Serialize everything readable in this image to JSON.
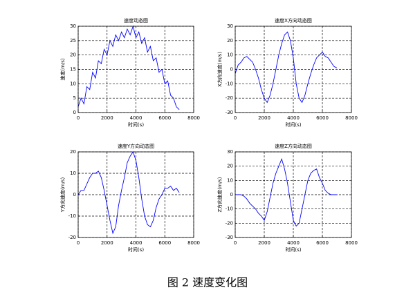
{
  "chart_data": [
    {
      "type": "line",
      "title": "速度动态图",
      "x_label": "时间(s)",
      "y_label": "速度(m/s)",
      "color": "#0000ff",
      "x": [
        0,
        200,
        400,
        600,
        800,
        1000,
        1200,
        1400,
        1600,
        1800,
        2000,
        2200,
        2400,
        2600,
        2800,
        3000,
        3200,
        3400,
        3600,
        3800,
        4000,
        4200,
        4400,
        4600,
        4800,
        5000,
        5200,
        5400,
        5600,
        5800,
        6000,
        6200,
        6400,
        6600,
        6800,
        7000
      ],
      "values": [
        2,
        5,
        3,
        9,
        8,
        14,
        12,
        18,
        17,
        22,
        20,
        25,
        23,
        27,
        25,
        28,
        26,
        29,
        27,
        30,
        26,
        28,
        24,
        26,
        21,
        23,
        18,
        19,
        14,
        15,
        10,
        11,
        6,
        5,
        2,
        1
      ],
      "xlim": [
        0,
        8000
      ],
      "ylim": [
        0,
        30
      ],
      "xticks": [
        0,
        2000,
        4000,
        6000,
        8000
      ],
      "yticks": [
        0,
        5,
        10,
        15,
        20,
        25,
        30
      ],
      "grid": true
    },
    {
      "type": "line",
      "title": "速度X方向动态图",
      "x_label": "时间(s)",
      "y_label": "X方向速度(m/s)",
      "color": "#0000ff",
      "x": [
        0,
        200,
        400,
        600,
        800,
        1000,
        1200,
        1400,
        1600,
        1800,
        2000,
        2200,
        2400,
        2600,
        2800,
        3000,
        3200,
        3400,
        3600,
        3800,
        4000,
        4200,
        4400,
        4600,
        4800,
        5000,
        5200,
        5400,
        5600,
        5800,
        6000,
        6200,
        6400,
        6600,
        6800,
        7000
      ],
      "values": [
        -3,
        3,
        5,
        8,
        9,
        7,
        5,
        0,
        -6,
        -14,
        -20,
        -23,
        -18,
        -10,
        0,
        10,
        18,
        24,
        26,
        20,
        8,
        -10,
        -20,
        -23,
        -18,
        -10,
        -3,
        3,
        8,
        10,
        12,
        9,
        8,
        5,
        2,
        1
      ],
      "xlim": [
        0,
        8000
      ],
      "ylim": [
        -30,
        30
      ],
      "xticks": [
        0,
        2000,
        4000,
        6000,
        8000
      ],
      "yticks": [
        -30,
        -20,
        -10,
        0,
        10,
        20,
        30
      ],
      "grid": true
    },
    {
      "type": "line",
      "title": "速度Y方向动态图",
      "x_label": "时间(s)",
      "y_label": "Y方向速度(m/s)",
      "color": "#0000ff",
      "x": [
        0,
        200,
        400,
        600,
        800,
        1000,
        1200,
        1400,
        1600,
        1800,
        2000,
        2200,
        2400,
        2600,
        2800,
        3000,
        3200,
        3400,
        3600,
        3800,
        4000,
        4200,
        4400,
        4600,
        4800,
        5000,
        5200,
        5400,
        5600,
        5800,
        6000,
        6200,
        6400,
        6600,
        6800,
        7000
      ],
      "values": [
        0,
        2,
        2,
        5,
        8,
        10,
        10,
        11,
        8,
        2,
        -5,
        -12,
        -18,
        -15,
        -5,
        2,
        8,
        15,
        18,
        20,
        16,
        8,
        -2,
        -10,
        -14,
        -15,
        -12,
        -6,
        -2,
        0,
        3,
        3,
        4,
        2,
        3,
        1
      ],
      "xlim": [
        0,
        8000
      ],
      "ylim": [
        -20,
        20
      ],
      "xticks": [
        0,
        2000,
        4000,
        6000,
        8000
      ],
      "yticks": [
        -20,
        -10,
        0,
        10,
        20
      ],
      "grid": true
    },
    {
      "type": "line",
      "title": "速度Z方向动态图",
      "x_label": "时间(s)",
      "y_label": "Z方向速度(m/s)",
      "color": "#0000ff",
      "x": [
        0,
        200,
        400,
        600,
        800,
        1000,
        1200,
        1400,
        1600,
        1800,
        2000,
        2200,
        2400,
        2600,
        2800,
        3000,
        3200,
        3400,
        3600,
        3800,
        4000,
        4200,
        4400,
        4600,
        4800,
        5000,
        5200,
        5400,
        5600,
        5800,
        6000,
        6200,
        6400,
        6600,
        6800,
        7000
      ],
      "values": [
        0,
        0,
        0,
        -1,
        -3,
        -6,
        -8,
        -10,
        -13,
        -15,
        -18,
        -12,
        -2,
        8,
        15,
        20,
        25,
        18,
        8,
        -5,
        -18,
        -22,
        -20,
        -10,
        0,
        10,
        15,
        17,
        18,
        12,
        8,
        3,
        1,
        0,
        0,
        0
      ],
      "xlim": [
        0,
        8000
      ],
      "ylim": [
        -30,
        30
      ],
      "xticks": [
        0,
        2000,
        4000,
        6000,
        8000
      ],
      "yticks": [
        -30,
        -20,
        -10,
        0,
        10,
        20,
        30
      ],
      "grid": true
    }
  ],
  "caption": "图 2 速度变化图"
}
